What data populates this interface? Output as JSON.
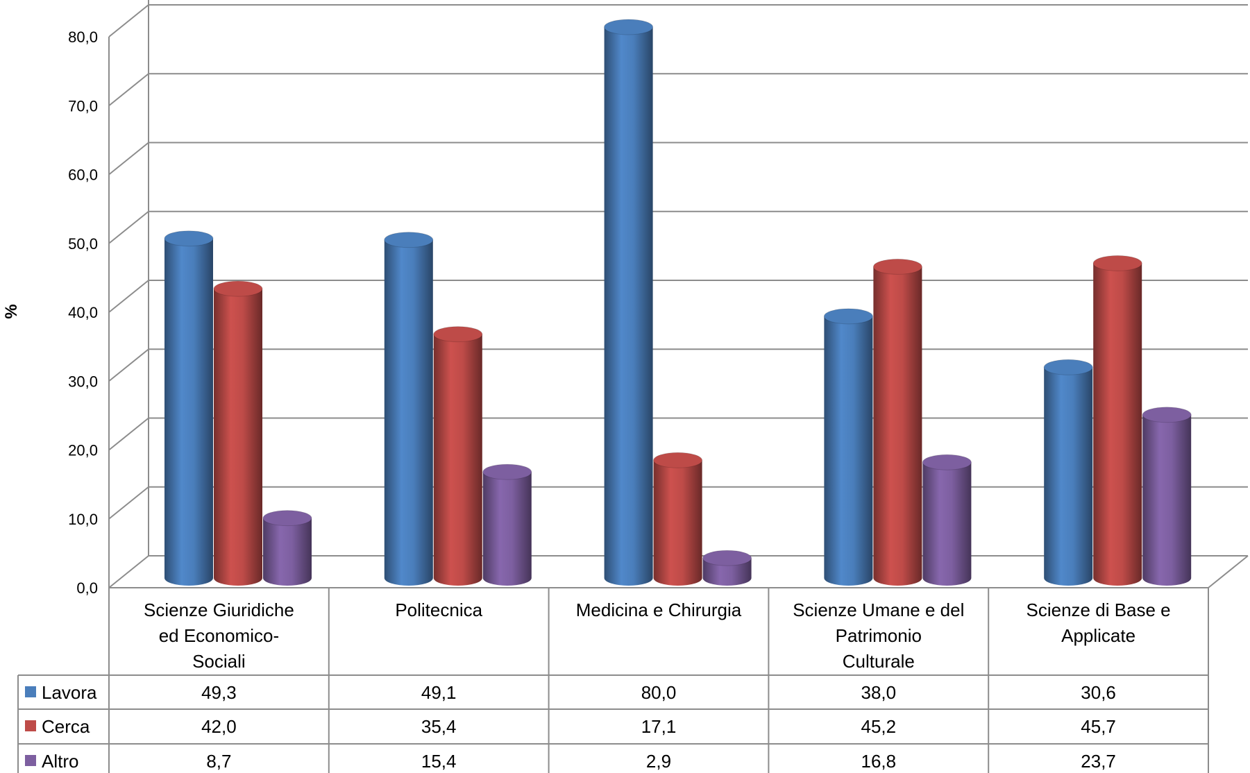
{
  "chart_data": {
    "type": "bar",
    "style": "3d-cylinder",
    "ylabel": "%",
    "ylim": [
      0,
      80
    ],
    "ytick_labels": [
      "0,0",
      "10,0",
      "20,0",
      "30,0",
      "40,0",
      "50,0",
      "60,0",
      "70,0",
      "80,0"
    ],
    "categories": [
      [
        "Scienze Giuridiche",
        "ed Economico-",
        "Sociali"
      ],
      [
        "Politecnica"
      ],
      [
        "Medicina e Chirurgia"
      ],
      [
        "Scienze Umane e del",
        "Patrimonio",
        "Culturale"
      ],
      [
        "Scienze di Base e",
        "Applicate"
      ]
    ],
    "series": [
      {
        "name": "Lavora",
        "color": "#4a7ebb",
        "values": [
          49.3,
          49.1,
          80.0,
          38.0,
          30.6
        ],
        "labels": [
          "49,3",
          "49,1",
          "80,0",
          "38,0",
          "30,6"
        ]
      },
      {
        "name": "Cerca",
        "color": "#be4b48",
        "values": [
          42.0,
          35.4,
          17.1,
          45.2,
          45.7
        ],
        "labels": [
          "42,0",
          "35,4",
          "17,1",
          "45,2",
          "45,7"
        ]
      },
      {
        "name": "Altro",
        "color": "#7d5fa0",
        "values": [
          8.7,
          15.4,
          2.9,
          16.8,
          23.7
        ],
        "labels": [
          "8,7",
          "15,4",
          "2,9",
          "16,8",
          "23,7"
        ]
      }
    ],
    "grid": true,
    "legend": "data-table"
  }
}
